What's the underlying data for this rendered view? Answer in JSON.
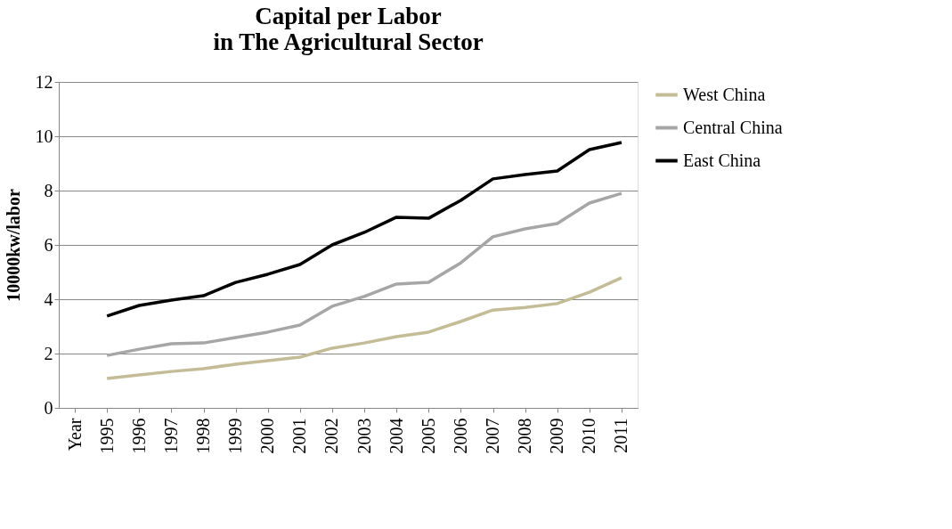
{
  "chart_data": {
    "type": "line",
    "title": "Capital per Labor\nin The Agricultural Sector",
    "ylabel": "10000kw/labor",
    "categories": [
      "Year",
      "1995",
      "1996",
      "1997",
      "1998",
      "1999",
      "2000",
      "2001",
      "2002",
      "2003",
      "2004",
      "2005",
      "2006",
      "2007",
      "2008",
      "2009",
      "2010",
      "2011"
    ],
    "series": [
      {
        "name": "West China",
        "color": "#c4bc96",
        "values": [
          null,
          1.08,
          1.21,
          1.34,
          1.44,
          1.61,
          1.74,
          1.87,
          2.2,
          2.39,
          2.62,
          2.79,
          3.18,
          3.6,
          3.7,
          3.84,
          4.26,
          4.79
        ]
      },
      {
        "name": "Central China",
        "color": "#a6a6a6",
        "values": [
          null,
          1.93,
          2.16,
          2.36,
          2.39,
          2.59,
          2.79,
          3.05,
          3.74,
          4.1,
          4.56,
          4.62,
          5.34,
          6.3,
          6.59,
          6.79,
          7.54,
          7.9
        ]
      },
      {
        "name": "East China",
        "color": "#000000",
        "values": [
          null,
          3.38,
          3.77,
          3.97,
          4.13,
          4.62,
          4.92,
          5.28,
          6.0,
          6.46,
          7.02,
          6.98,
          7.64,
          8.43,
          8.59,
          8.72,
          9.51,
          9.77
        ]
      }
    ],
    "ylim": [
      0,
      12
    ],
    "yticks": [
      0,
      2,
      4,
      6,
      8,
      10,
      12
    ],
    "grid": "y",
    "legend": "right",
    "marker": "none",
    "line_style": "solid"
  }
}
